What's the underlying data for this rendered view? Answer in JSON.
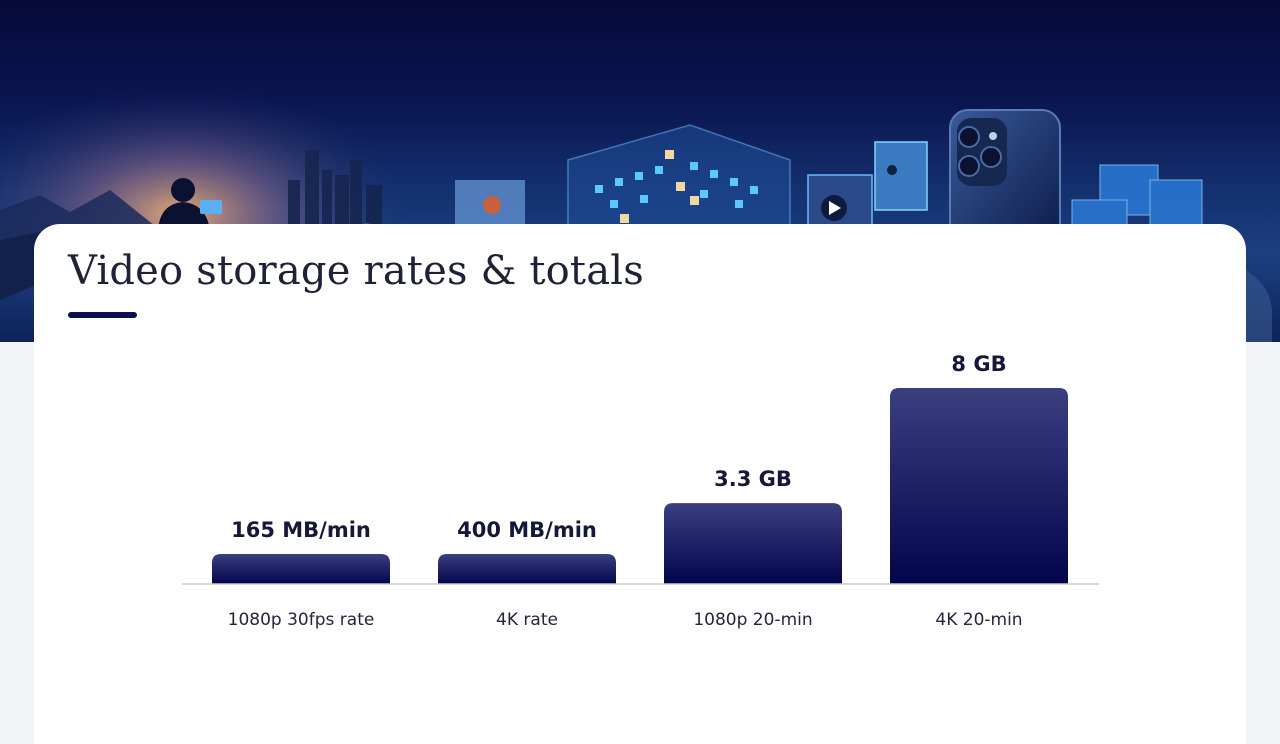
{
  "slide": {
    "title": "Video storage rates & totals"
  },
  "banner_icons": [
    "photographer-silhouette",
    "city-skyline",
    "hot-air-balloon-photo",
    "data-cube-grid",
    "play-icon",
    "surfer-photo",
    "smartphone-camera",
    "storage-cubes"
  ],
  "colors": {
    "bar_top": "#3a3f80",
    "bar_bottom": "#03054a",
    "accent": "#0b0f4e",
    "baseline": "#c8c9cf"
  },
  "chart_data": {
    "type": "bar",
    "categories": [
      "1080p 30fps rate",
      "4K rate",
      "1080p 20-min",
      "4K 20-min"
    ],
    "values": [
      165,
      400,
      3300,
      8000
    ],
    "value_labels": [
      "165 MB/min",
      "400 MB/min",
      "3.3 GB",
      "8 GB"
    ],
    "units": [
      "MB/min",
      "MB/min",
      "MB",
      "MB"
    ],
    "title": "Video storage rates & totals",
    "xlabel": "",
    "ylabel": "",
    "grid": false,
    "legend": "none"
  }
}
